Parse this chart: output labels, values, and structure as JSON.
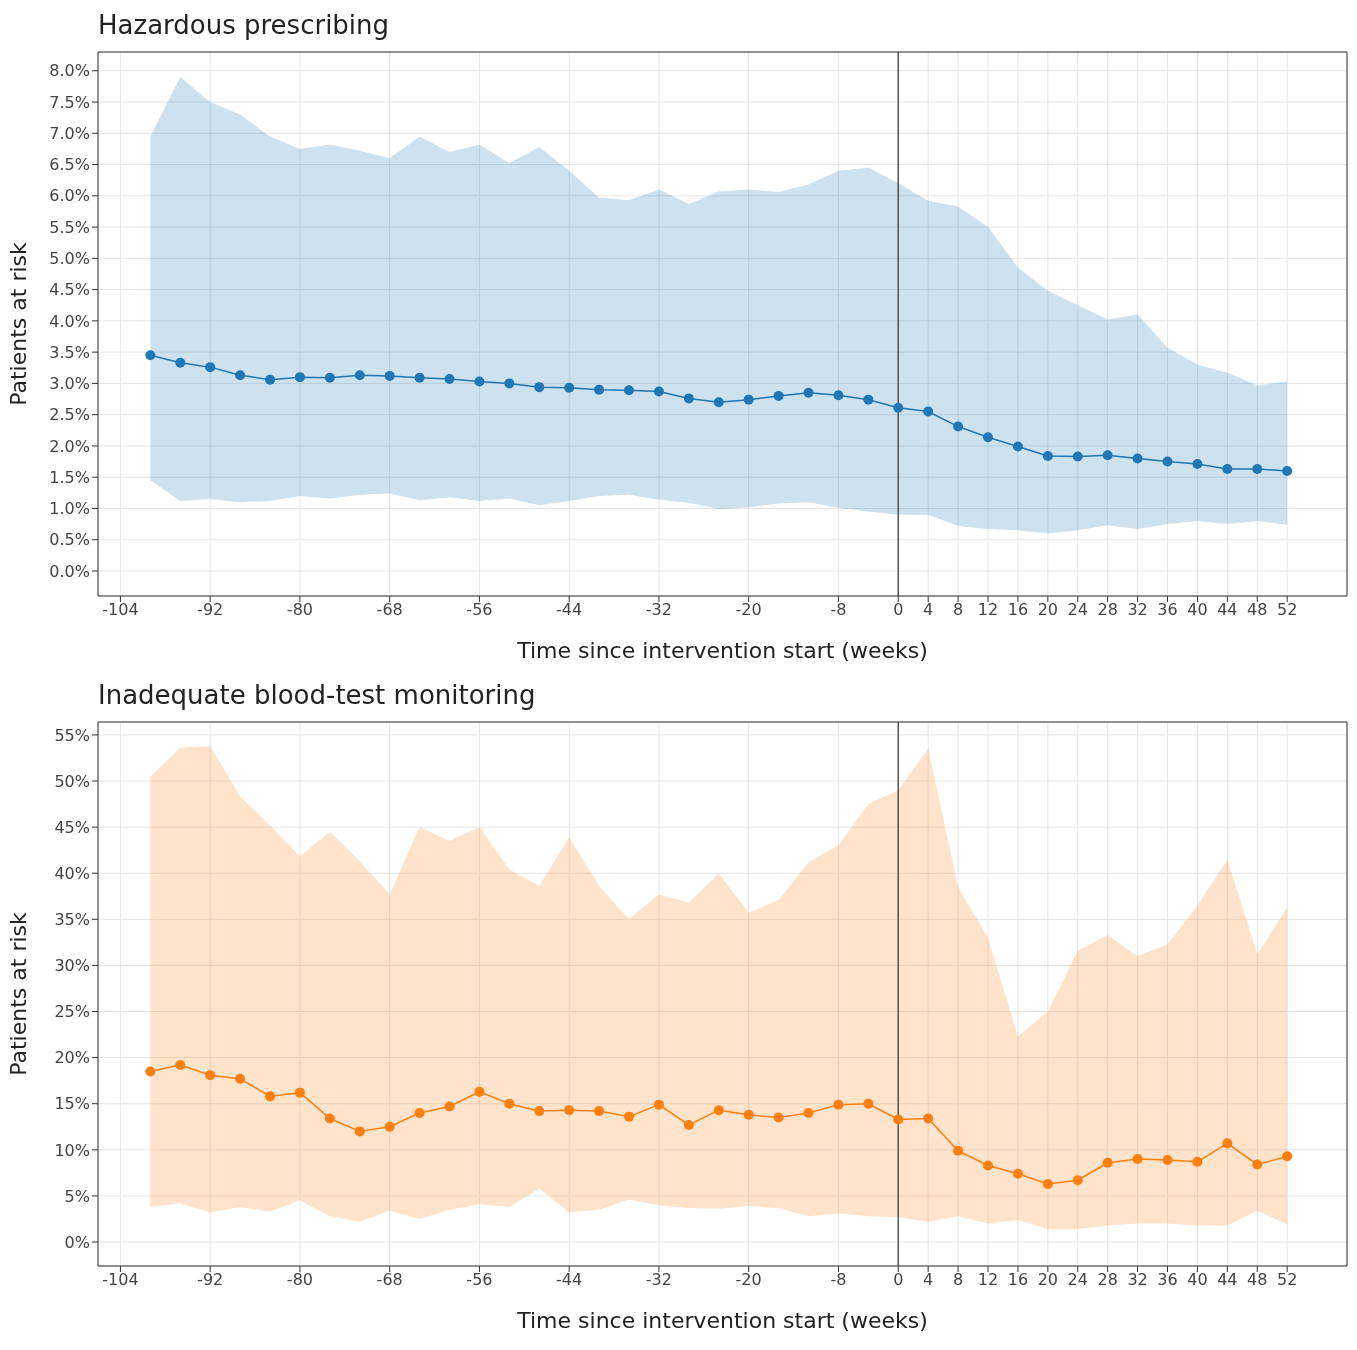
{
  "chart_data": [
    {
      "type": "line",
      "title": "Hazardous prescribing",
      "xlabel": "Time since intervention start (weeks)",
      "ylabel": "Patients at risk",
      "x": [
        -100,
        -96,
        -92,
        -88,
        -84,
        -80,
        -76,
        -72,
        -68,
        -64,
        -60,
        -56,
        -52,
        -48,
        -44,
        -40,
        -36,
        -32,
        -28,
        -24,
        -20,
        -16,
        -12,
        -8,
        -4,
        0,
        4,
        8,
        12,
        16,
        20,
        24,
        28,
        32,
        36,
        40,
        44,
        48,
        52
      ],
      "series": [
        {
          "color": "#1f77b4",
          "values": [
            3.45,
            3.33,
            3.26,
            3.13,
            3.06,
            3.1,
            3.09,
            3.13,
            3.12,
            3.09,
            3.07,
            3.03,
            3.0,
            2.94,
            2.93,
            2.9,
            2.89,
            2.87,
            2.76,
            2.7,
            2.74,
            2.8,
            2.85,
            2.81,
            2.74,
            2.61,
            2.55,
            2.31,
            2.14,
            1.99,
            1.84,
            1.83,
            1.85,
            1.8,
            1.75,
            1.71,
            1.63,
            1.63,
            1.6
          ],
          "lower": [
            1.45,
            1.12,
            1.15,
            1.1,
            1.12,
            1.2,
            1.16,
            1.22,
            1.24,
            1.13,
            1.18,
            1.12,
            1.16,
            1.05,
            1.12,
            1.2,
            1.22,
            1.14,
            1.09,
            0.99,
            1.02,
            1.08,
            1.1,
            1.01,
            0.95,
            0.9,
            0.9,
            0.72,
            0.67,
            0.65,
            0.6,
            0.65,
            0.73,
            0.67,
            0.75,
            0.8,
            0.75,
            0.8,
            0.74
          ],
          "upper": [
            6.95,
            7.9,
            7.5,
            7.3,
            6.95,
            6.75,
            6.82,
            6.72,
            6.6,
            6.95,
            6.7,
            6.82,
            6.52,
            6.78,
            6.4,
            5.97,
            5.93,
            6.1,
            5.87,
            6.07,
            6.1,
            6.06,
            6.18,
            6.4,
            6.45,
            6.2,
            5.92,
            5.83,
            5.5,
            4.85,
            4.48,
            4.25,
            4.02,
            4.1,
            3.57,
            3.3,
            3.17,
            2.97,
            3.03
          ]
        }
      ],
      "xlim": [
        -107,
        60
      ],
      "xticks": [
        -104,
        -92,
        -80,
        -68,
        -56,
        -44,
        -32,
        -20,
        -8,
        0,
        4,
        8,
        12,
        16,
        20,
        24,
        28,
        32,
        36,
        40,
        44,
        48,
        52
      ],
      "ylim": [
        -0.4,
        8.3
      ],
      "yticks": [
        {
          "value": 0,
          "label": "0.0%"
        },
        {
          "value": 0.5,
          "label": "0.5%"
        },
        {
          "value": 1,
          "label": "1.0%"
        },
        {
          "value": 1.5,
          "label": "1.5%"
        },
        {
          "value": 2,
          "label": "2.0%"
        },
        {
          "value": 2.5,
          "label": "2.5%"
        },
        {
          "value": 3,
          "label": "3.0%"
        },
        {
          "value": 3.5,
          "label": "3.5%"
        },
        {
          "value": 4,
          "label": "4.0%"
        },
        {
          "value": 4.5,
          "label": "4.5%"
        },
        {
          "value": 5,
          "label": "5.0%"
        },
        {
          "value": 5.5,
          "label": "5.5%"
        },
        {
          "value": 6,
          "label": "6.0%"
        },
        {
          "value": 6.5,
          "label": "6.5%"
        },
        {
          "value": 7,
          "label": "7.0%"
        },
        {
          "value": 7.5,
          "label": "7.5%"
        },
        {
          "value": 8,
          "label": "8.0%"
        }
      ],
      "ref_lines": [
        {
          "axis": "x",
          "value": 0,
          "color": "#555555"
        }
      ],
      "grid": true,
      "marker": "circle",
      "line_style": "solid"
    },
    {
      "type": "line",
      "title": "Inadequate blood-test monitoring",
      "xlabel": "Time since intervention start (weeks)",
      "ylabel": "Patients at risk",
      "x": [
        -100,
        -96,
        -92,
        -88,
        -84,
        -80,
        -76,
        -72,
        -68,
        -64,
        -60,
        -56,
        -52,
        -48,
        -44,
        -40,
        -36,
        -32,
        -28,
        -24,
        -20,
        -16,
        -12,
        -8,
        -4,
        0,
        4,
        8,
        12,
        16,
        20,
        24,
        28,
        32,
        36,
        40,
        44,
        48,
        52
      ],
      "series": [
        {
          "color": "#ff7f0e",
          "values": [
            18.5,
            19.2,
            18.1,
            17.7,
            15.8,
            16.2,
            13.4,
            12.0,
            12.5,
            14.0,
            14.7,
            16.3,
            15.0,
            14.2,
            14.3,
            14.2,
            13.6,
            14.9,
            12.7,
            14.3,
            13.8,
            13.5,
            14.0,
            14.9,
            15.0,
            13.3,
            13.4,
            9.9,
            8.3,
            7.4,
            6.3,
            6.7,
            8.6,
            9.0,
            8.9,
            8.7,
            10.7,
            8.4,
            9.3
          ],
          "lower": [
            3.8,
            4.2,
            3.2,
            3.8,
            3.3,
            4.5,
            2.8,
            2.2,
            3.4,
            2.5,
            3.5,
            4.1,
            3.8,
            5.8,
            3.2,
            3.5,
            4.6,
            4.0,
            3.7,
            3.6,
            3.9,
            3.7,
            2.8,
            3.1,
            2.8,
            2.7,
            2.2,
            2.8,
            2.0,
            2.4,
            1.4,
            1.4,
            1.8,
            2.0,
            2.0,
            1.8,
            1.8,
            3.4,
            1.9
          ],
          "upper": [
            50.5,
            53.6,
            53.8,
            48.3,
            45.2,
            41.8,
            44.5,
            41.3,
            37.7,
            45.0,
            43.5,
            45.0,
            40.4,
            38.6,
            43.9,
            38.6,
            35.0,
            37.7,
            36.8,
            40.0,
            35.7,
            37.1,
            41.2,
            43.0,
            47.5,
            49.0,
            53.5,
            38.5,
            33.0,
            22.3,
            25.0,
            31.6,
            33.3,
            31.0,
            32.3,
            36.5,
            41.5,
            31.2,
            36.3
          ]
        }
      ],
      "xlim": [
        -107,
        60
      ],
      "xticks": [
        -104,
        -92,
        -80,
        -68,
        -56,
        -44,
        -32,
        -20,
        -8,
        0,
        4,
        8,
        12,
        16,
        20,
        24,
        28,
        32,
        36,
        40,
        44,
        48,
        52
      ],
      "ylim": [
        -2.6,
        56.4
      ],
      "yticks": [
        {
          "value": 0,
          "label": "0%"
        },
        {
          "value": 5,
          "label": "5%"
        },
        {
          "value": 10,
          "label": "10%"
        },
        {
          "value": 15,
          "label": "15%"
        },
        {
          "value": 20,
          "label": "20%"
        },
        {
          "value": 25,
          "label": "25%"
        },
        {
          "value": 30,
          "label": "30%"
        },
        {
          "value": 35,
          "label": "35%"
        },
        {
          "value": 40,
          "label": "40%"
        },
        {
          "value": 45,
          "label": "45%"
        },
        {
          "value": 50,
          "label": "50%"
        },
        {
          "value": 55,
          "label": "55%"
        }
      ],
      "ref_lines": [
        {
          "axis": "x",
          "value": 0,
          "color": "#555555"
        }
      ],
      "grid": true,
      "marker": "circle",
      "line_style": "solid"
    }
  ]
}
